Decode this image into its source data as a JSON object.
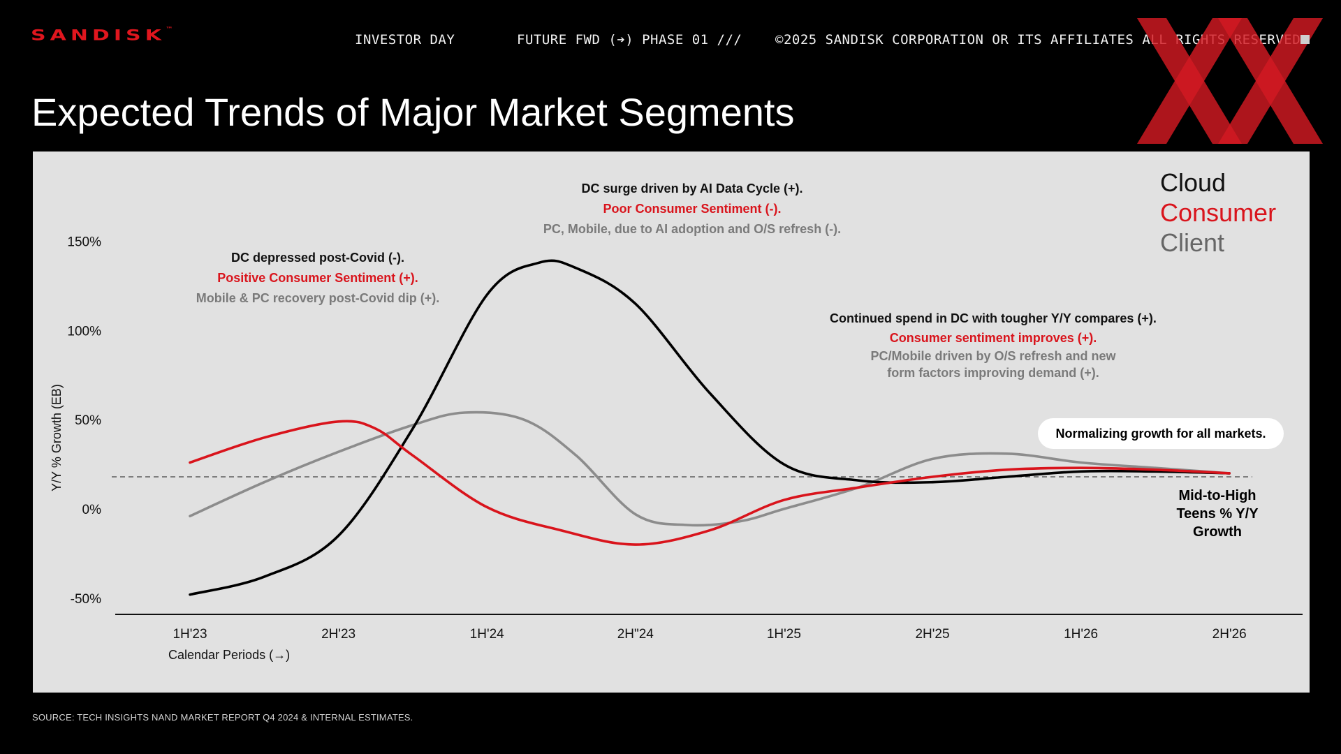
{
  "header": {
    "logo": "SANDISK",
    "logo_tm": "™",
    "nav": [
      "INVESTOR DAY",
      "FUTURE FWD (➔) PHASE 01 ///",
      "©2025 SANDISK CORPORATION OR ITS AFFILIATES ALL RIGHTS RESERVED"
    ]
  },
  "title": "Expected Trends of Major Market Segments",
  "source": "SOURCE: TECH INSIGHTS NAND MARKET REPORT Q4 2024 & INTERNAL ESTIMATES.",
  "colors": {
    "cloud": "#000000",
    "consumer": "#d9141c",
    "client": "#8c8c8c",
    "brand": "#e0161e"
  },
  "annotations": {
    "left": [
      "DC depressed post-Covid (-).",
      "Positive Consumer Sentiment (+).",
      "Mobile & PC recovery post-Covid dip (+)."
    ],
    "top": [
      "DC surge driven by AI Data Cycle (+).",
      "Poor Consumer Sentiment (-).",
      "PC, Mobile, due to AI adoption and O/S refresh (-)."
    ],
    "right": [
      "Continued spend in DC with tougher Y/Y compares (+).",
      "Consumer sentiment improves (+).",
      "PC/Mobile driven by O/S refresh and new",
      "form factors improving demand (+)."
    ],
    "pill": "Normalizing growth for all markets.",
    "mid_high": [
      "Mid-to-High",
      "Teens % Y/Y",
      "Growth"
    ]
  },
  "chart_data": {
    "type": "line",
    "title": "Expected Trends of Major Market Segments",
    "xlabel": "Calendar Periods (→)",
    "ylabel": "Y/Y % Growth (EB)",
    "categories": [
      "1H'23",
      "2H'23",
      "1H'24",
      "2H\"24",
      "1H'25",
      "2H'25",
      "1H'26",
      "2H'26"
    ],
    "y_ticks": [
      "150%",
      "100%",
      "50%",
      "0%",
      "-50%"
    ],
    "y_tick_values": [
      150,
      100,
      50,
      0,
      -50
    ],
    "ylim": [
      -55,
      160
    ],
    "reference_line": 18,
    "legend": [
      "Cloud",
      "Consumer",
      "Client"
    ],
    "legend_position": "top-right",
    "grid": false,
    "series": [
      {
        "name": "Cloud",
        "x": [
          0,
          0.5,
          1,
          1.5,
          2,
          2.35,
          2.6,
          3,
          3.5,
          4,
          4.5,
          5,
          5.5,
          6,
          6.5,
          7
        ],
        "values": [
          -48,
          -38,
          -15,
          45,
          120,
          138,
          135,
          115,
          65,
          25,
          16,
          15,
          18,
          21,
          21,
          20
        ]
      },
      {
        "name": "Consumer",
        "x": [
          0,
          0.5,
          1,
          1.25,
          1.5,
          2,
          2.5,
          3,
          3.5,
          4,
          4.5,
          5,
          5.5,
          6,
          6.5,
          7
        ],
        "values": [
          26,
          40,
          49,
          45,
          30,
          1,
          -12,
          -20,
          -12,
          5,
          12,
          18,
          22,
          23,
          22,
          20
        ]
      },
      {
        "name": "Client",
        "x": [
          0,
          0.5,
          1,
          1.5,
          1.85,
          2.25,
          2.6,
          3,
          3.35,
          3.7,
          4,
          4.5,
          5,
          5.5,
          6,
          6.5,
          7
        ],
        "values": [
          -4,
          15,
          32,
          47,
          54,
          50,
          30,
          -3,
          -9,
          -7,
          0,
          12,
          28,
          31,
          26,
          23,
          20
        ]
      }
    ]
  }
}
